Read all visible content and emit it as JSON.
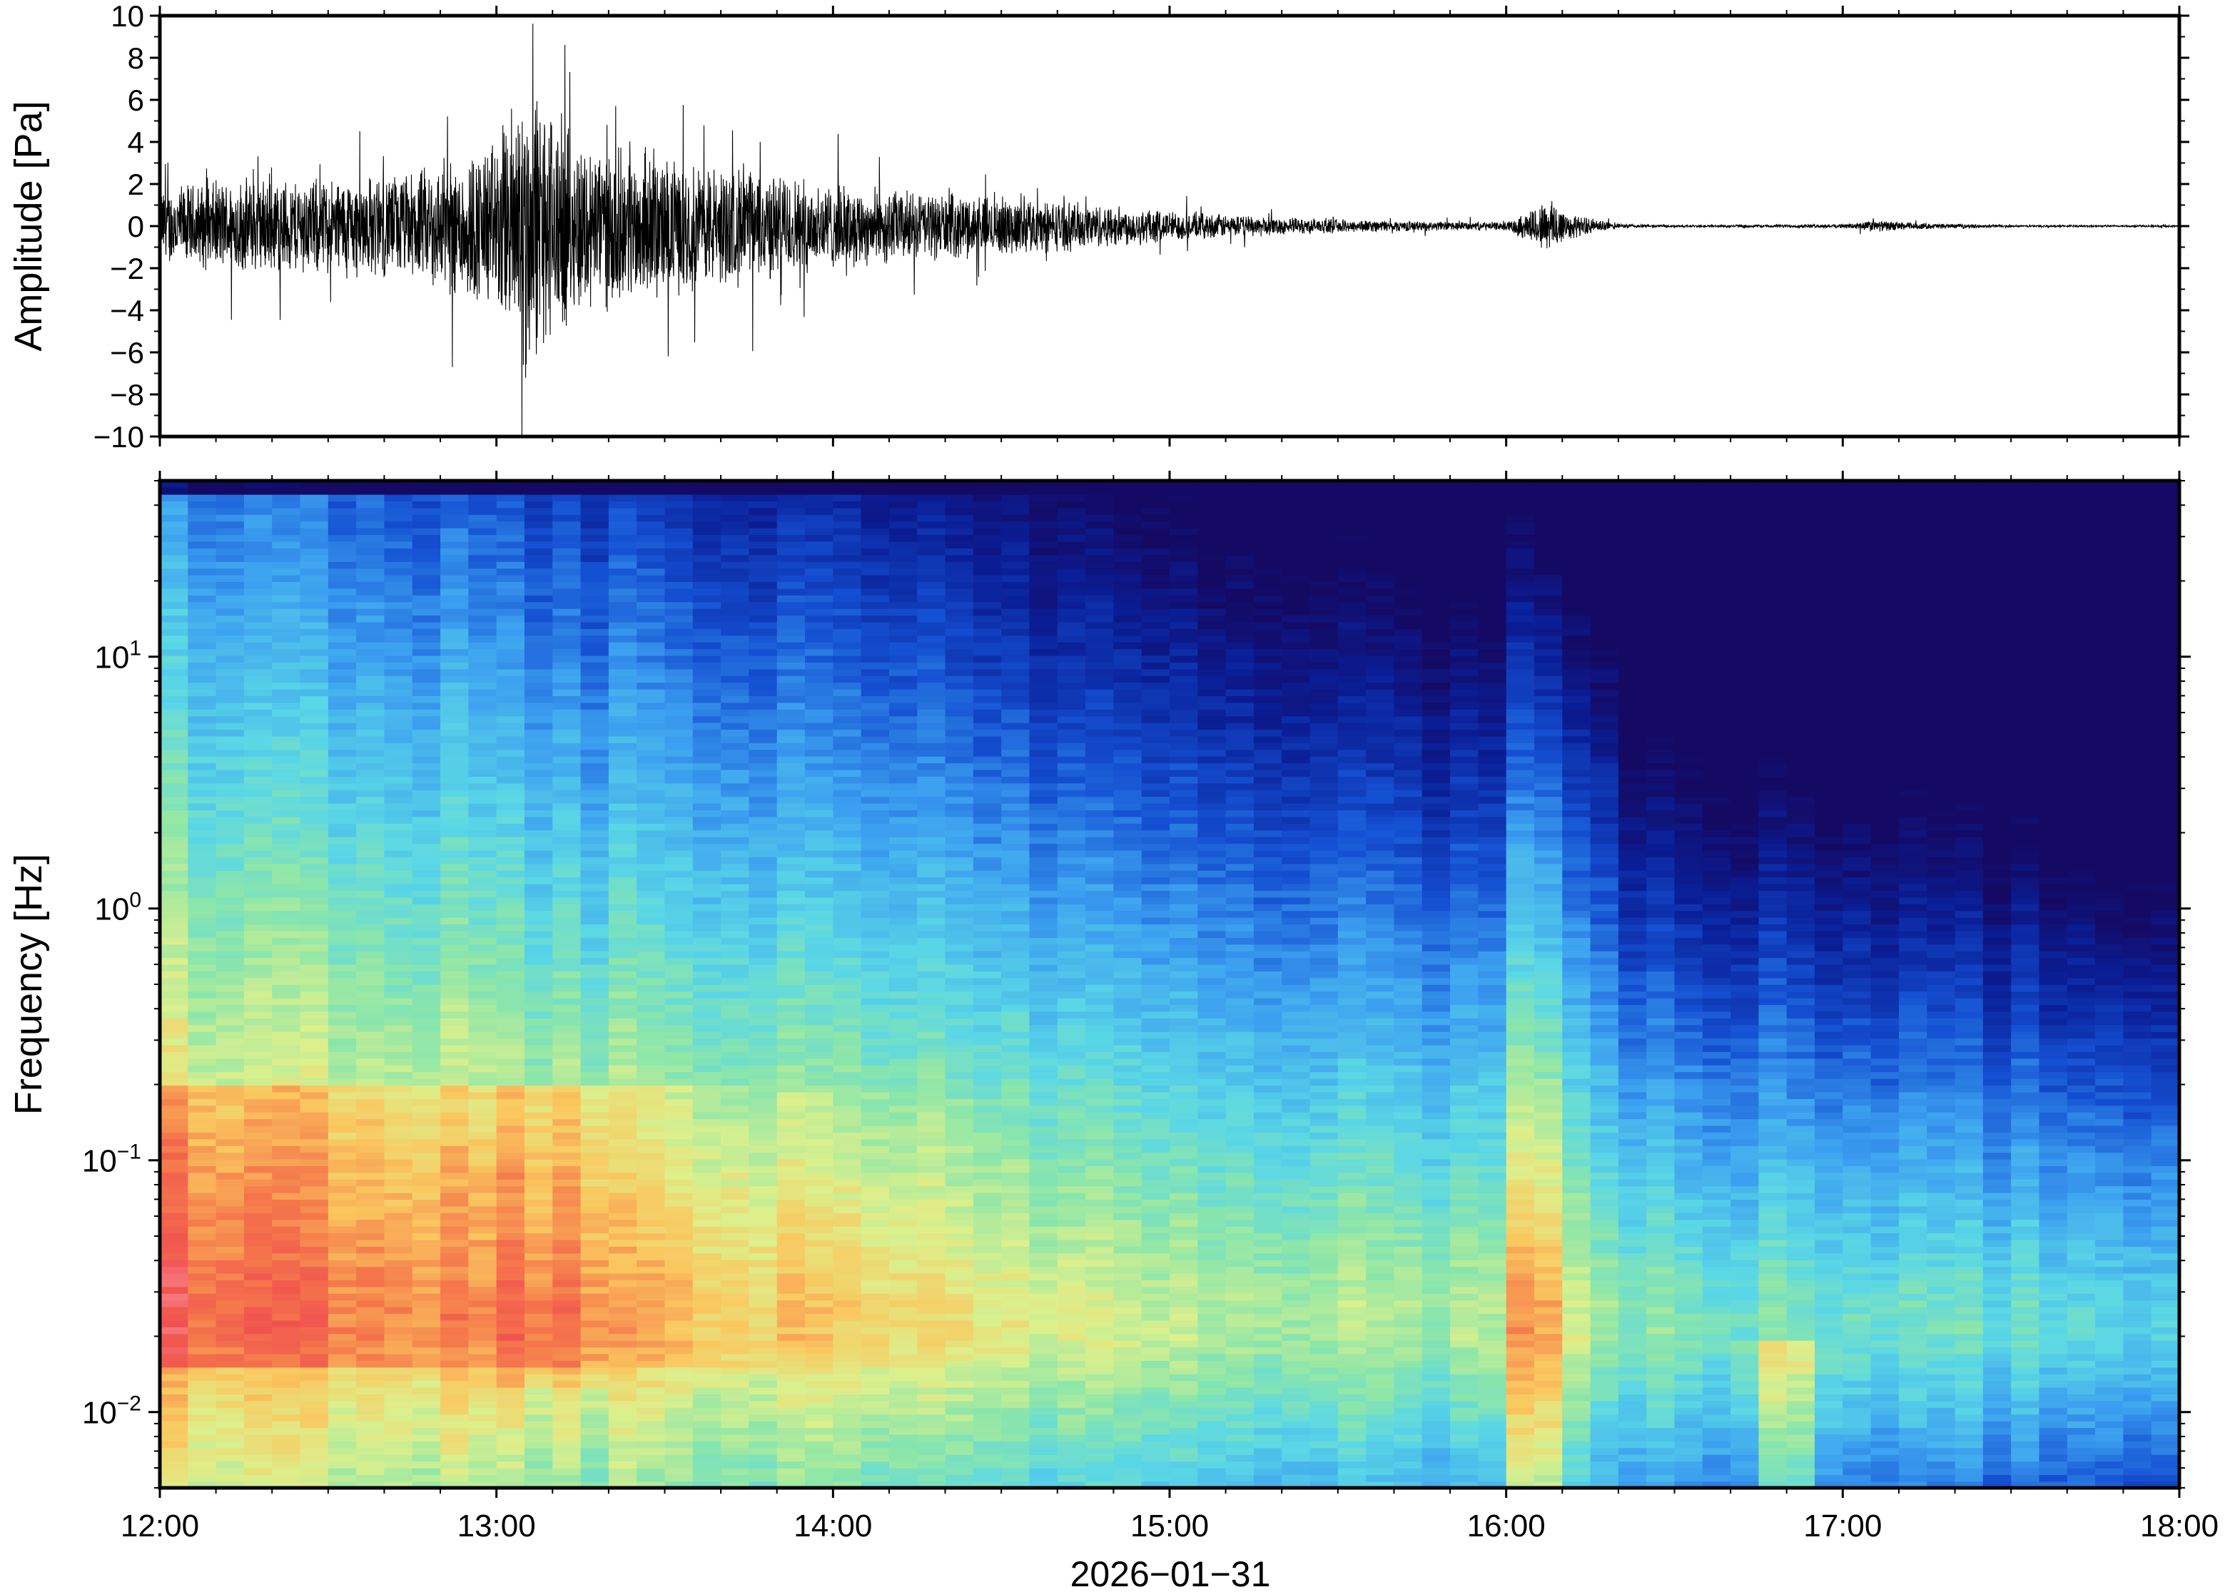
{
  "chart_data": [
    {
      "type": "line",
      "ylabel": "Amplitude [Pa]",
      "ylim": [
        -10,
        10
      ],
      "yticks": [
        -10,
        -8,
        -6,
        -4,
        -2,
        0,
        2,
        4,
        6,
        8,
        10
      ],
      "ytick_labels": [
        "−10",
        "−8",
        "−6",
        "−4",
        "−2",
        "0",
        "2",
        "4",
        "6",
        "8",
        "10"
      ],
      "xlim": [
        "12:00",
        "18:00"
      ],
      "series": [
        {
          "description": "pressure waveform envelope (approx. half-range of oscillation at each hour)",
          "x": [
            "12:00",
            "12:15",
            "12:30",
            "12:45",
            "13:00",
            "13:05",
            "13:10",
            "13:15",
            "13:30",
            "13:45",
            "14:00",
            "14:15",
            "14:30",
            "14:45",
            "15:00",
            "15:15",
            "15:30",
            "15:45",
            "16:00",
            "16:08",
            "16:12",
            "16:20",
            "16:30",
            "17:00",
            "17:05",
            "17:15",
            "17:30",
            "18:00"
          ],
          "envelope": [
            2.0,
            2.5,
            2.5,
            2.8,
            4.5,
            8.0,
            6.0,
            4.5,
            3.5,
            3.0,
            2.2,
            1.8,
            1.5,
            1.2,
            0.8,
            0.5,
            0.35,
            0.25,
            0.2,
            1.5,
            0.6,
            0.12,
            0.06,
            0.1,
            0.3,
            0.15,
            0.05,
            0.05
          ],
          "color": "#000000"
        }
      ]
    },
    {
      "type": "heatmap",
      "ylabel": "Frequency [Hz]",
      "xlabel": "2026−01−31",
      "y_scale": "log",
      "ylim": [
        0.005,
        50
      ],
      "yticks": [
        0.01,
        0.1,
        1,
        10
      ],
      "ytick_labels": [
        {
          "base": "10",
          "exp": "−2"
        },
        {
          "base": "10",
          "exp": "−1"
        },
        {
          "base": "10",
          "exp": "0"
        },
        {
          "base": "10",
          "exp": "1"
        }
      ],
      "xticks": [
        "12:00",
        "13:00",
        "14:00",
        "15:00",
        "16:00",
        "17:00",
        "18:00"
      ],
      "colormap": "jet-like (dark blue low → red/pink high)",
      "description": "power spectral density: high (red) at low frequencies 12:00–15:00, decreasing with time; broadband burst near 16:05; quiet (dark blue) at high frequencies after 16:20"
    }
  ]
}
